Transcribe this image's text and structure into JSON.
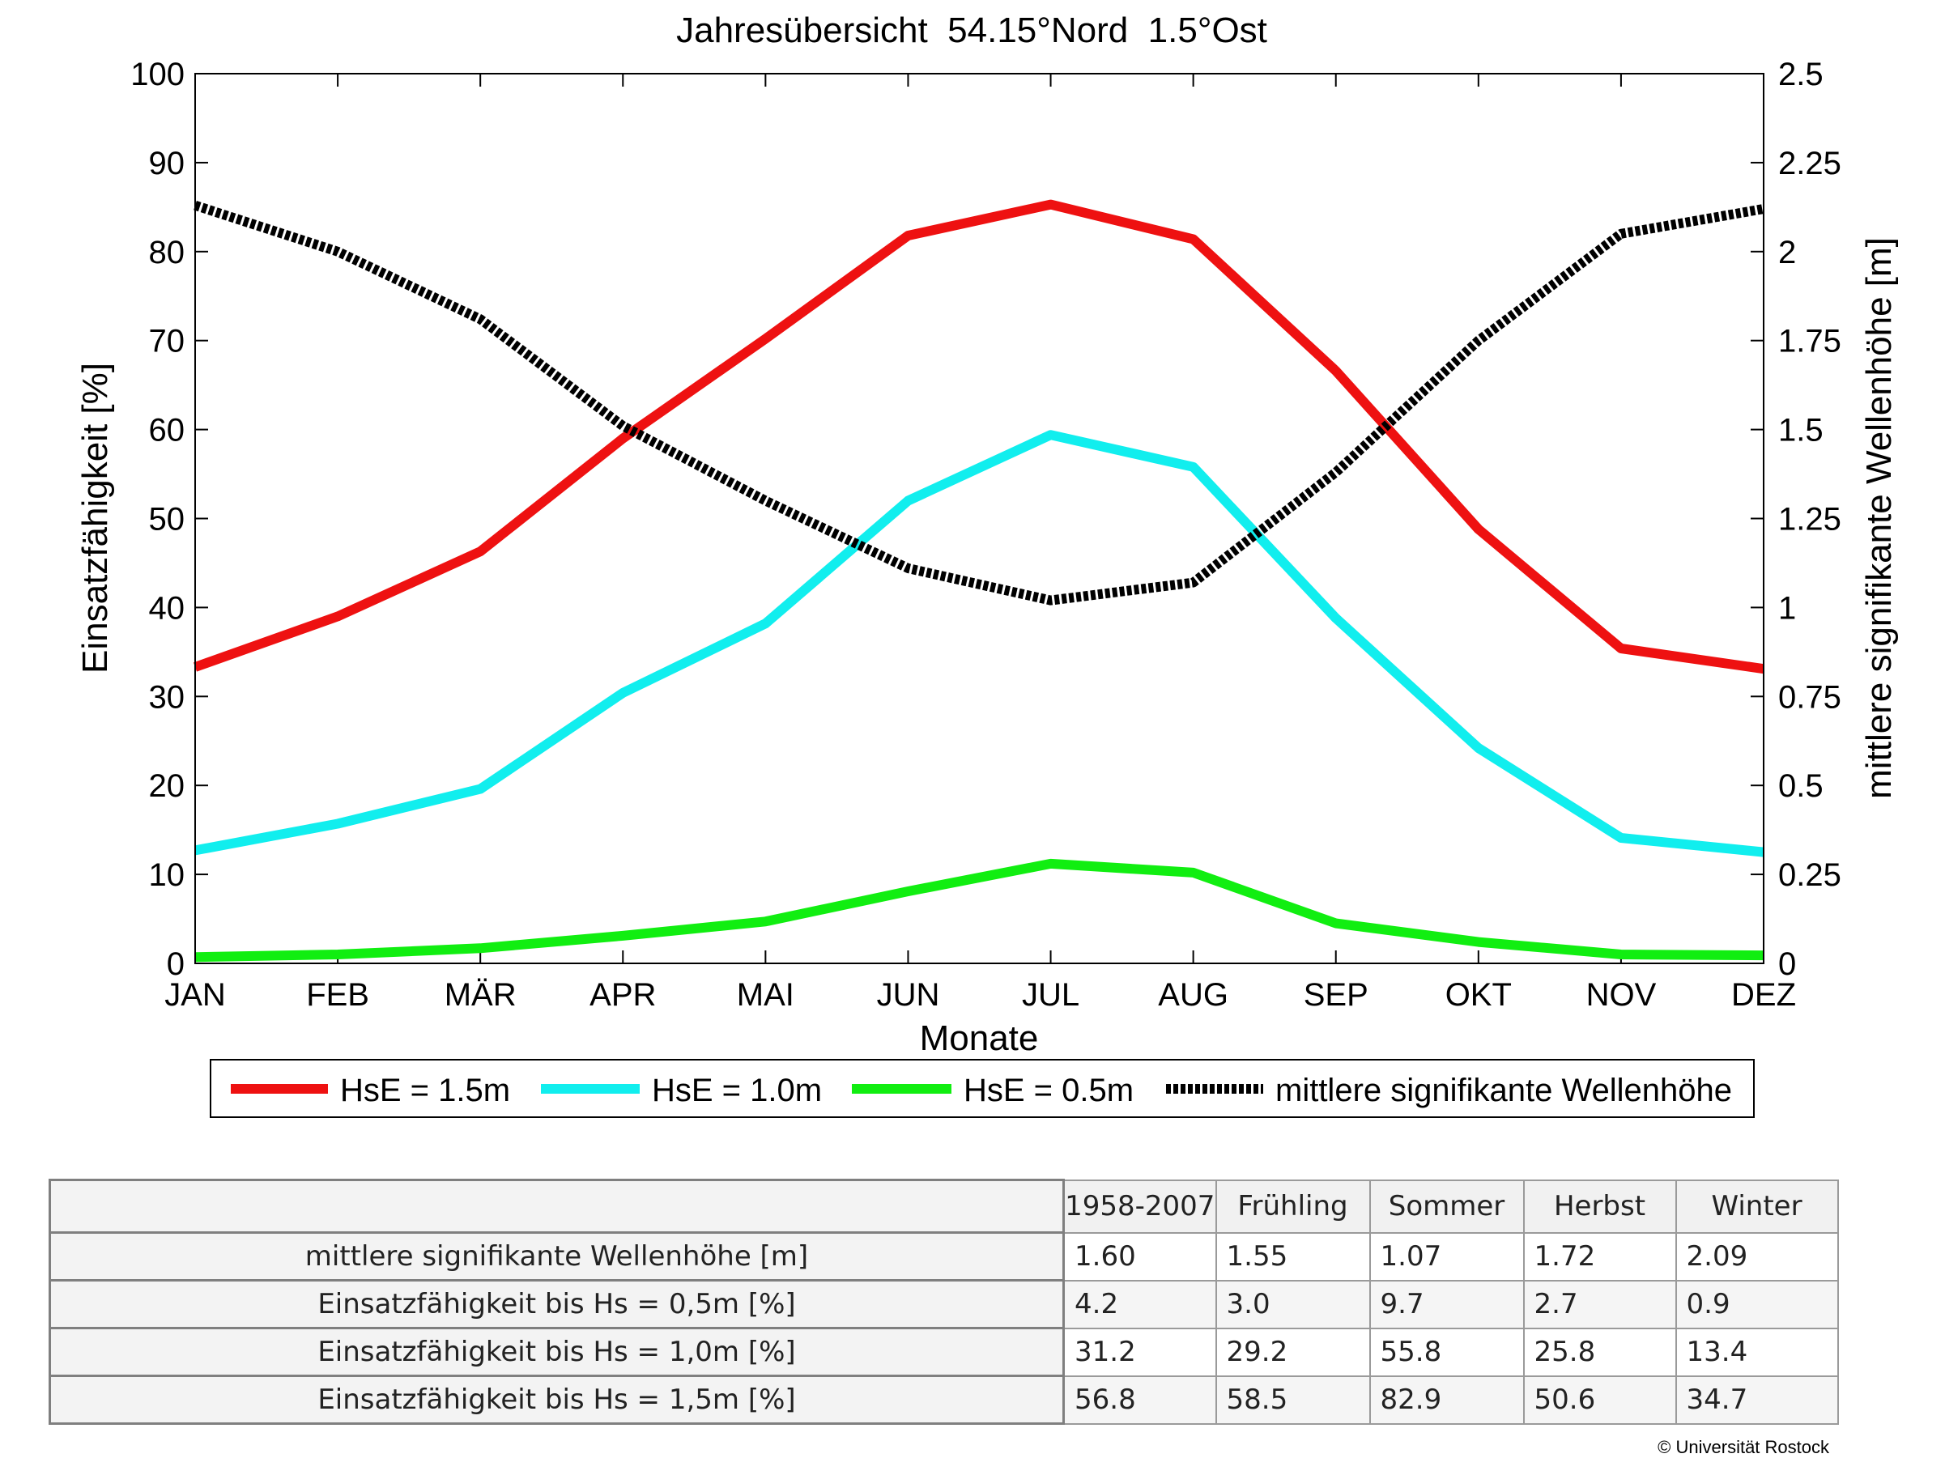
{
  "chart_data": {
    "type": "line",
    "title": "Jahresübersicht  54.15°Nord  1.5°Ost",
    "xlabel": "Monate",
    "ylabel": "Einsatzfähigkeit [%]",
    "ylabel_right": "mittlere signifikante Wellenhöhe [m]",
    "categories": [
      "JAN",
      "FEB",
      "MÄR",
      "APR",
      "MAI",
      "JUN",
      "JUL",
      "AUG",
      "SEP",
      "OKT",
      "NOV",
      "DEZ"
    ],
    "ylim": [
      0,
      100
    ],
    "yticks": [
      "0",
      "10",
      "20",
      "30",
      "40",
      "50",
      "60",
      "70",
      "80",
      "90",
      "100"
    ],
    "ylim_right": [
      0,
      2.5
    ],
    "yticks_right": [
      "0",
      "0.25",
      "0.5",
      "0.75",
      "1",
      "1.25",
      "1.5",
      "1.75",
      "2",
      "2.25",
      "2.5"
    ],
    "grid": false,
    "legend_position": "below",
    "series": [
      {
        "name": "HsE = 1.5m",
        "axis": "left",
        "color": "#ee1111",
        "style": "solid",
        "values": [
          33.3,
          39.0,
          46.3,
          59.0,
          70.2,
          81.8,
          85.3,
          81.4,
          66.6,
          48.8,
          35.4,
          33.1
        ]
      },
      {
        "name": "HsE = 1.0m",
        "axis": "left",
        "color": "#11eeee",
        "style": "solid",
        "values": [
          12.7,
          15.7,
          19.6,
          30.4,
          38.2,
          52.0,
          59.4,
          55.8,
          38.8,
          24.2,
          14.1,
          12.5
        ]
      },
      {
        "name": "HsE = 0.5m",
        "axis": "left",
        "color": "#11ee11",
        "style": "solid",
        "values": [
          0.7,
          1.0,
          1.7,
          3.1,
          4.7,
          8.1,
          11.2,
          10.2,
          4.5,
          2.4,
          1.0,
          0.9
        ]
      },
      {
        "name": "mittlere signifikante Wellenhöhe",
        "axis": "right",
        "color": "#000000",
        "style": "dotted",
        "values": [
          2.13,
          2.0,
          1.81,
          1.51,
          1.3,
          1.11,
          1.02,
          1.07,
          1.38,
          1.75,
          2.05,
          2.12
        ]
      }
    ]
  },
  "table": {
    "headers": [
      "1958-2007",
      "Frühling",
      "Sommer",
      "Herbst",
      "Winter"
    ],
    "rows": [
      {
        "label": "mittlere signifikante Wellenhöhe [m]",
        "values": [
          "1.60",
          "1.55",
          "1.07",
          "1.72",
          "2.09"
        ]
      },
      {
        "label": "Einsatzfähigkeit bis Hs = 0,5m [%]",
        "values": [
          "4.2",
          "3.0",
          "9.7",
          "2.7",
          "0.9"
        ]
      },
      {
        "label": "Einsatzfähigkeit bis Hs = 1,0m [%]",
        "values": [
          "31.2",
          "29.2",
          "55.8",
          "25.8",
          "13.4"
        ]
      },
      {
        "label": "Einsatzfähigkeit bis Hs = 1,5m [%]",
        "values": [
          "56.8",
          "58.5",
          "82.9",
          "50.6",
          "34.7"
        ]
      }
    ]
  },
  "copyright": "© Universität Rostock"
}
